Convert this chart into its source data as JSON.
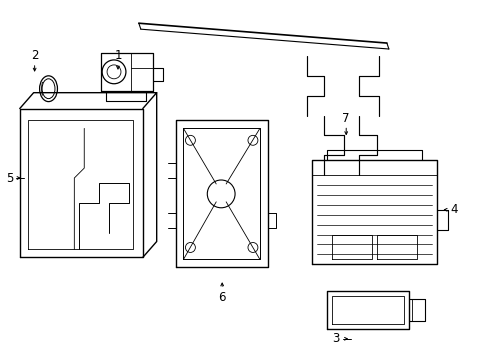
{
  "background_color": "#ffffff",
  "line_color": "#000000",
  "fig_width": 4.9,
  "fig_height": 3.6,
  "dpi": 100
}
